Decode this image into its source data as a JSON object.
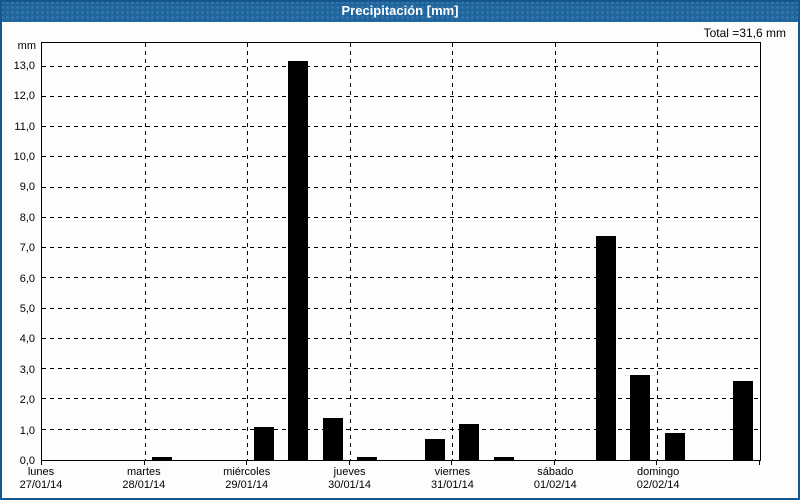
{
  "window": {
    "title": "Precipitación [mm]",
    "total_label": "Total =31,6 mm"
  },
  "colors": {
    "titlebar_blue": "#1f669e",
    "window_border_blue": "#16568e",
    "background": "#fdfdfc",
    "bar_black": "#000000",
    "grid_black": "#000000"
  },
  "chart_data": {
    "type": "bar",
    "title": "Precipitación [mm]",
    "ylabel": "mm",
    "ylim": [
      0,
      13.78
    ],
    "ytick_step": 1.0,
    "ytick_labels": [
      "0,0",
      "1,0",
      "2,0",
      "3,0",
      "4,0",
      "5,0",
      "6,0",
      "7,0",
      "8,0",
      "9,0",
      "10,0",
      "11,0",
      "12,0",
      "13,0"
    ],
    "grid": "dashed",
    "legend": "none",
    "bar_color": "#000000",
    "slots_per_day": 3,
    "days": [
      {
        "name": "lunes",
        "date": "27/01/14"
      },
      {
        "name": "martes",
        "date": "28/01/14"
      },
      {
        "name": "miércoles",
        "date": "29/01/14"
      },
      {
        "name": "jueves",
        "date": "30/01/14"
      },
      {
        "name": "viernes",
        "date": "31/01/14"
      },
      {
        "name": "sábado",
        "date": "01/02/14"
      },
      {
        "name": "domingo",
        "date": "02/02/14"
      }
    ],
    "bars": [
      {
        "day": "martes",
        "day_index": 1,
        "slot": 0,
        "value": 0.1
      },
      {
        "day": "miércoles",
        "day_index": 2,
        "slot": 0,
        "value": 1.1
      },
      {
        "day": "miércoles",
        "day_index": 2,
        "slot": 1,
        "value": 13.2
      },
      {
        "day": "miércoles",
        "day_index": 2,
        "slot": 2,
        "value": 1.4
      },
      {
        "day": "jueves",
        "day_index": 3,
        "slot": 0,
        "value": 0.1
      },
      {
        "day": "jueves",
        "day_index": 3,
        "slot": 2,
        "value": 0.7
      },
      {
        "day": "viernes",
        "day_index": 4,
        "slot": 0,
        "value": 1.2
      },
      {
        "day": "viernes",
        "day_index": 4,
        "slot": 1,
        "value": 0.1
      },
      {
        "day": "sábado",
        "day_index": 5,
        "slot": 1,
        "value": 7.4
      },
      {
        "day": "sábado",
        "day_index": 5,
        "slot": 2,
        "value": 2.8
      },
      {
        "day": "domingo",
        "day_index": 6,
        "slot": 0,
        "value": 0.9
      },
      {
        "day": "domingo",
        "day_index": 6,
        "slot": 2,
        "value": 2.6
      }
    ],
    "total_mm": 31.6
  }
}
